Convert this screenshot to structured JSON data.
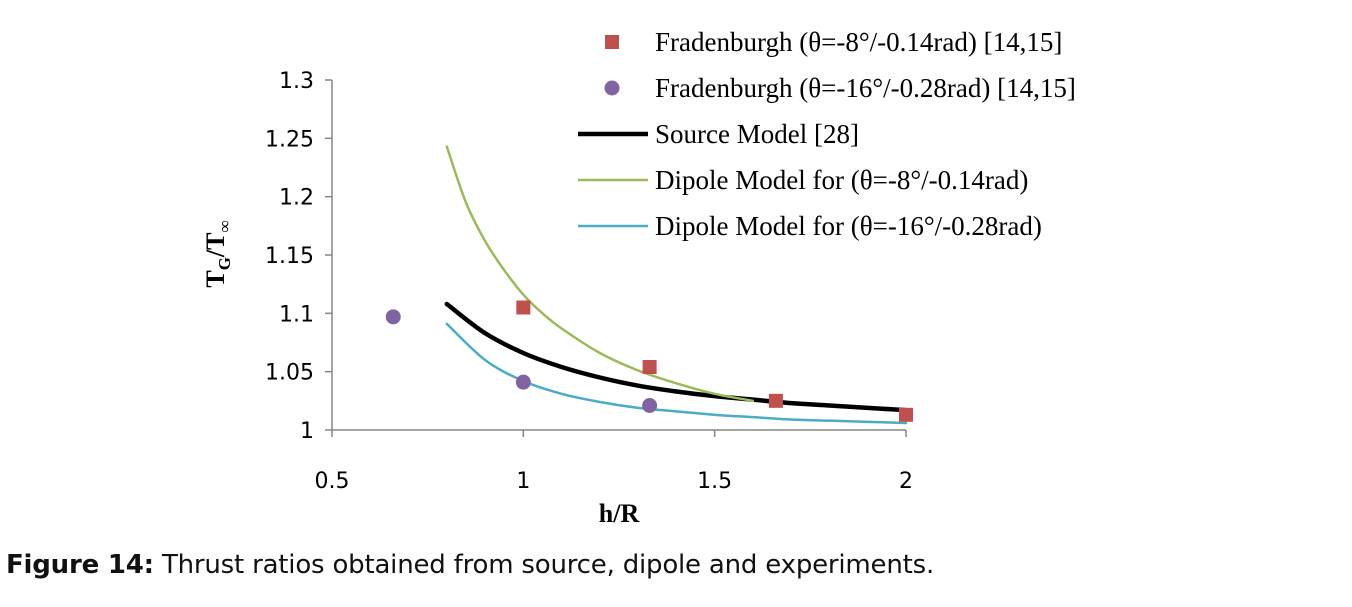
{
  "chart_data": {
    "type": "scatter",
    "xlabel": "h/R",
    "ylabel": "T",
    "ylabel_sub": "G",
    "ylabel_den": "/T",
    "ylabel_den_sub": "∞",
    "xlim": [
      0.5,
      2
    ],
    "ylim": [
      1,
      1.3
    ],
    "xticks": [
      0.5,
      1,
      1.5,
      2
    ],
    "xtick_labels": [
      "0.5",
      "1",
      "1.5",
      "2"
    ],
    "yticks": [
      1,
      1.05,
      1.1,
      1.15,
      1.2,
      1.25,
      1.3
    ],
    "ytick_labels": [
      "1",
      "1.05",
      "1.1",
      "1.15",
      "1.2",
      "1.25",
      "1.3"
    ],
    "grid": false,
    "legend_position": "top-right",
    "series": [
      {
        "name": "Fradenburgh (θ=-8°/-0.14rad) [14,15]",
        "kind": "markers",
        "marker": "square",
        "color": "#c0504d",
        "x": [
          1.0,
          1.33,
          1.66,
          2.0
        ],
        "y": [
          1.105,
          1.054,
          1.025,
          1.013
        ]
      },
      {
        "name": "Fradenburgh (θ=-16°/-0.28rad) [14,15]",
        "kind": "markers",
        "marker": "circle",
        "color": "#8064a2",
        "x": [
          0.66,
          1.0,
          1.33
        ],
        "y": [
          1.097,
          1.041,
          1.021
        ]
      },
      {
        "name": "Source Model [28]",
        "kind": "line",
        "color": "#000000",
        "x": [
          0.8,
          0.9,
          1.0,
          1.1,
          1.2,
          1.3,
          1.4,
          1.5,
          1.6,
          1.7,
          1.8,
          1.9,
          2.0
        ],
        "y": [
          1.108,
          1.083,
          1.066,
          1.054,
          1.045,
          1.038,
          1.033,
          1.029,
          1.026,
          1.023,
          1.021,
          1.019,
          1.017
        ]
      },
      {
        "name": "Dipole Model for (θ=-8°/-0.14rad)",
        "kind": "line",
        "color": "#9bbb59",
        "x": [
          0.8,
          0.85,
          0.9,
          0.95,
          1.0,
          1.05,
          1.1,
          1.2,
          1.3,
          1.4,
          1.5,
          1.6
        ],
        "y": [
          1.243,
          1.195,
          1.162,
          1.137,
          1.116,
          1.1,
          1.087,
          1.066,
          1.051,
          1.04,
          1.031,
          1.025
        ]
      },
      {
        "name": "Dipole Model for (θ=-16°/-0.28rad)",
        "kind": "line",
        "color": "#4bacc6",
        "x": [
          0.8,
          0.9,
          1.0,
          1.1,
          1.2,
          1.3,
          1.4,
          1.5,
          1.6,
          1.7,
          1.8,
          1.9,
          2.0
        ],
        "y": [
          1.091,
          1.06,
          1.042,
          1.031,
          1.024,
          1.019,
          1.016,
          1.013,
          1.011,
          1.009,
          1.008,
          1.007,
          1.006
        ]
      }
    ]
  },
  "caption": {
    "label": "Figure 14:",
    "text": " Thrust ratios obtained from source, dipole and experiments."
  }
}
